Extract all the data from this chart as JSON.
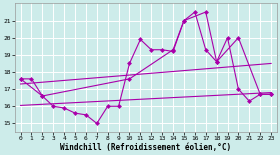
{
  "xlabel": "Windchill (Refroidissement éolien,°C)",
  "background_color": "#cdecea",
  "grid_color": "#ffffff",
  "line_color": "#aa00aa",
  "xlim": [
    -0.5,
    23.5
  ],
  "ylim": [
    14.5,
    22.0
  ],
  "xticks": [
    0,
    1,
    2,
    3,
    4,
    5,
    6,
    7,
    8,
    9,
    10,
    11,
    12,
    13,
    14,
    15,
    16,
    17,
    18,
    19,
    20,
    21,
    22,
    23
  ],
  "yticks": [
    15,
    16,
    17,
    18,
    19,
    20,
    21
  ],
  "line1_x": [
    0,
    1,
    2,
    3,
    4,
    5,
    6,
    7,
    8,
    9,
    10,
    11,
    12,
    13,
    14,
    15,
    16,
    17,
    18,
    19,
    20,
    21,
    22,
    23
  ],
  "line1_y": [
    17.6,
    17.6,
    16.6,
    16.0,
    15.9,
    15.6,
    15.5,
    15.0,
    16.0,
    16.0,
    18.5,
    19.9,
    19.3,
    19.3,
    19.2,
    21.0,
    21.5,
    19.3,
    18.6,
    20.0,
    17.0,
    16.3,
    16.7,
    16.7
  ],
  "line2_x": [
    0,
    2,
    10,
    14,
    15,
    17,
    18,
    20,
    22,
    23
  ],
  "line2_y": [
    17.6,
    16.6,
    17.6,
    19.3,
    21.0,
    21.5,
    18.6,
    20.0,
    16.7,
    16.7
  ],
  "regline1_x": [
    0,
    23
  ],
  "regline1_y": [
    17.3,
    18.5
  ],
  "regline2_x": [
    0,
    23
  ],
  "regline2_y": [
    16.05,
    16.8
  ],
  "markersize": 2.5,
  "linewidth": 0.8,
  "xlabel_fontsize": 5.5,
  "tick_fontsize": 4.5
}
